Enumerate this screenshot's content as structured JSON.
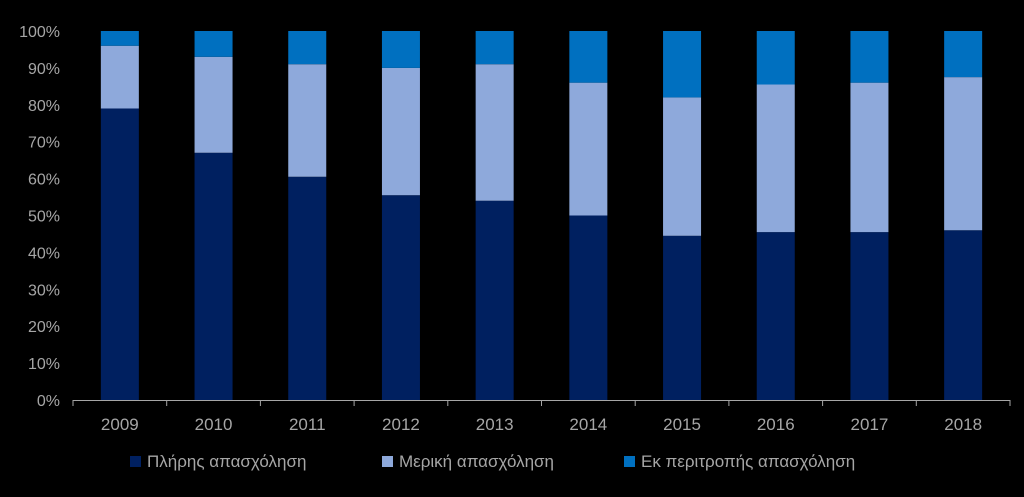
{
  "chart_data": {
    "type": "bar",
    "stacked": true,
    "percent": true,
    "categories": [
      "2009",
      "2010",
      "2011",
      "2012",
      "2013",
      "2014",
      "2015",
      "2016",
      "2017",
      "2018"
    ],
    "series": [
      {
        "name": "Πλήρης απασχόληση",
        "color": "#002060",
        "values": [
          79,
          67,
          60.5,
          55.5,
          54,
          50,
          44.5,
          45.5,
          45.5,
          46
        ]
      },
      {
        "name": "Μερική απασχόληση",
        "color": "#8EA9DB",
        "values": [
          17,
          26,
          30.5,
          34.5,
          37,
          36,
          37.5,
          40,
          40.5,
          41.5
        ]
      },
      {
        "name": "Εκ περιτροπής απασχόληση",
        "color": "#0070C0",
        "values": [
          4,
          7,
          9,
          10,
          9,
          14,
          18,
          14.5,
          14,
          12.5
        ]
      }
    ],
    "ylim": [
      0,
      100
    ],
    "yticks": [
      "0%",
      "10%",
      "20%",
      "30%",
      "40%",
      "50%",
      "60%",
      "70%",
      "80%",
      "90%",
      "100%"
    ],
    "grid": false,
    "legend": "bottom",
    "background": "#000000",
    "axis_color": "#a6a6a6"
  }
}
